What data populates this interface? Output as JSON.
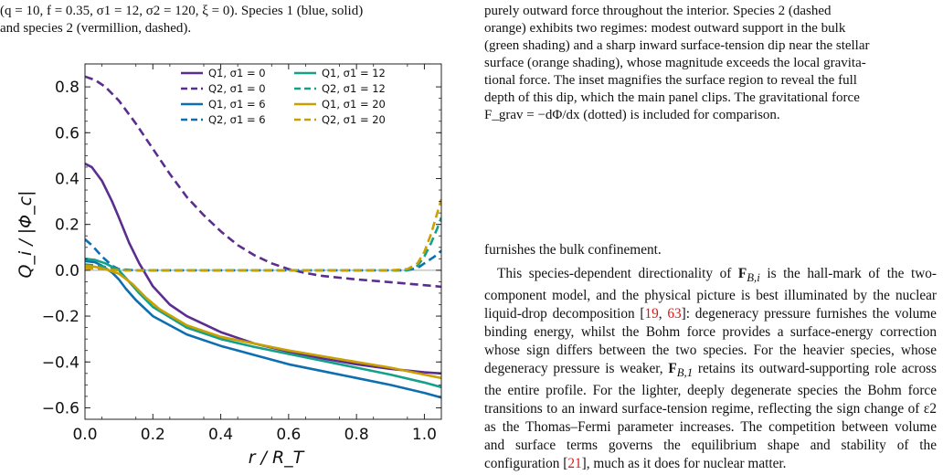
{
  "caption_left": {
    "line1": "(q = 10, f = 0.35, σ1 = 12, σ2 = 120, ξ = 0). Species 1 (blue, solid)",
    "line2": "and species 2 (vermillion, dashed)."
  },
  "caption_right": {
    "line1": "purely outward force throughout the interior. Species 2 (dashed",
    "line2": "orange) exhibits two regimes: modest outward support in the bulk",
    "line3": "(green shading) and a sharp inward surface-tension dip near the stellar",
    "line4": "surface (orange shading), whose magnitude exceeds the local gravita-",
    "line5": "tional force. The inset magnifies the surface region to reveal the full",
    "line6": "depth of this dip, which the main panel clips. The gravitational force",
    "line7": "F_grav = −dΦ/dx (dotted) is included for comparison."
  },
  "body": {
    "p1": "furnishes the bulk confinement.",
    "p2_a": "This species-dependent directionality of ",
    "p2_b": "F",
    "p2_c": " is the hall-mark of the two-component model, and the physical picture is best illuminated by the nuclear liquid-drop decomposition [",
    "cite1": "19",
    "sep1": ", ",
    "cite2": "63",
    "p2_d": "]: degeneracy pressure furnishes the volume binding energy, whilst the Bohm force provides a surface-energy correction whose sign differs between the two species. For the heavier species, whose degeneracy pressure is weaker, ",
    "p2_e": "F",
    "p2_f": " retains its outward-supporting role across the entire profile. For the lighter, deeply degenerate species the Bohm force transitions to an inward surface-tension regime, reflecting the sign change of ε2 as the Thomas–Fermi parameter increases. The competition between volume and surface terms governs the equilibrium shape and stability of the configuration [",
    "cite3": "21",
    "p2_g": "], much as it does for nuclear matter."
  },
  "chart_data": {
    "type": "line",
    "xlabel": "r / R_T",
    "ylabel": "Q_i / |Φ_c|",
    "xlim": [
      0.0,
      1.05
    ],
    "ylim": [
      -0.65,
      0.9
    ],
    "xticks": [
      "0.0",
      "0.2",
      "0.4",
      "0.6",
      "0.8",
      "1.0"
    ],
    "yticks": [
      "−0.6",
      "−0.4",
      "−0.2",
      "0.0",
      "0.2",
      "0.4",
      "0.6",
      "0.8"
    ],
    "legend_position": "top-right",
    "zero_line": true,
    "series": [
      {
        "name": "Q1, σ1 = 0",
        "color": "#5b2d8e",
        "dash": false,
        "x": [
          0,
          0.02,
          0.05,
          0.08,
          0.1,
          0.13,
          0.16,
          0.2,
          0.25,
          0.3,
          0.4,
          0.5,
          0.6,
          0.7,
          0.8,
          0.9,
          1.0,
          1.05
        ],
        "y": [
          0.465,
          0.45,
          0.39,
          0.3,
          0.23,
          0.12,
          0.03,
          -0.07,
          -0.15,
          -0.2,
          -0.27,
          -0.32,
          -0.355,
          -0.385,
          -0.41,
          -0.43,
          -0.445,
          -0.45
        ]
      },
      {
        "name": "Q2, σ1 = 0",
        "color": "#5b2d8e",
        "dash": true,
        "x": [
          0,
          0.03,
          0.06,
          0.1,
          0.15,
          0.2,
          0.25,
          0.3,
          0.35,
          0.4,
          0.45,
          0.5,
          0.55,
          0.6,
          0.65,
          0.7,
          0.8,
          0.9,
          1.0,
          1.05
        ],
        "y": [
          0.845,
          0.83,
          0.8,
          0.74,
          0.64,
          0.53,
          0.42,
          0.32,
          0.24,
          0.17,
          0.11,
          0.065,
          0.03,
          0.005,
          -0.012,
          -0.025,
          -0.04,
          -0.052,
          -0.065,
          -0.072
        ]
      },
      {
        "name": "Q1, σ1 = 6",
        "color": "#0e6fb0",
        "dash": false,
        "x": [
          0,
          0.03,
          0.05,
          0.08,
          0.1,
          0.12,
          0.15,
          0.2,
          0.3,
          0.4,
          0.5,
          0.6,
          0.7,
          0.8,
          0.9,
          1.0,
          1.05
        ],
        "y": [
          0.04,
          0.035,
          0.02,
          -0.01,
          -0.04,
          -0.08,
          -0.13,
          -0.2,
          -0.28,
          -0.33,
          -0.37,
          -0.41,
          -0.44,
          -0.47,
          -0.5,
          -0.535,
          -0.555
        ]
      },
      {
        "name": "Q2, σ1 = 6",
        "color": "#0e6fb0",
        "dash": true,
        "x": [
          0,
          0.02,
          0.05,
          0.08,
          0.1,
          0.15,
          0.2,
          0.4,
          0.6,
          0.8,
          0.9,
          0.95,
          0.98,
          1.0,
          1.03,
          1.05
        ],
        "y": [
          0.135,
          0.11,
          0.06,
          0.02,
          0.005,
          0.0,
          0.0,
          0.0,
          0.0,
          0.0,
          0.0,
          0.0,
          0.01,
          0.03,
          0.06,
          0.085
        ]
      },
      {
        "name": "Q1, σ1 = 12",
        "color": "#15a08a",
        "dash": false,
        "x": [
          0,
          0.03,
          0.06,
          0.1,
          0.13,
          0.16,
          0.2,
          0.3,
          0.4,
          0.5,
          0.6,
          0.7,
          0.8,
          0.9,
          1.0,
          1.05
        ],
        "y": [
          0.05,
          0.045,
          0.03,
          0.0,
          -0.05,
          -0.1,
          -0.16,
          -0.25,
          -0.3,
          -0.335,
          -0.365,
          -0.395,
          -0.425,
          -0.455,
          -0.49,
          -0.51
        ]
      },
      {
        "name": "Q2, σ1 = 12",
        "color": "#15a08a",
        "dash": true,
        "x": [
          0,
          0.04,
          0.08,
          0.12,
          0.2,
          0.4,
          0.6,
          0.8,
          0.9,
          0.95,
          0.98,
          1.0,
          1.02,
          1.04,
          1.05
        ],
        "y": [
          0.025,
          0.02,
          0.01,
          0.0,
          0.0,
          0.0,
          0.0,
          0.0,
          0.0,
          0.0,
          0.02,
          0.06,
          0.12,
          0.19,
          0.23
        ]
      },
      {
        "name": "Q1, σ1 = 20",
        "color": "#c9a000",
        "dash": false,
        "x": [
          0,
          0.03,
          0.06,
          0.1,
          0.14,
          0.18,
          0.22,
          0.3,
          0.4,
          0.5,
          0.6,
          0.7,
          0.8,
          0.9,
          1.0,
          1.05
        ],
        "y": [
          0.02,
          0.015,
          0.005,
          -0.015,
          -0.06,
          -0.12,
          -0.17,
          -0.24,
          -0.29,
          -0.32,
          -0.35,
          -0.375,
          -0.4,
          -0.425,
          -0.455,
          -0.47
        ]
      },
      {
        "name": "Q2, σ1 = 20",
        "color": "#c9a000",
        "dash": true,
        "x": [
          0,
          0.05,
          0.1,
          0.2,
          0.4,
          0.6,
          0.8,
          0.9,
          0.95,
          0.98,
          1.0,
          1.02,
          1.04,
          1.05
        ],
        "y": [
          0.01,
          0.005,
          0.0,
          0.0,
          0.0,
          0.0,
          0.0,
          0.0,
          0.005,
          0.03,
          0.08,
          0.16,
          0.26,
          0.31
        ]
      }
    ]
  }
}
